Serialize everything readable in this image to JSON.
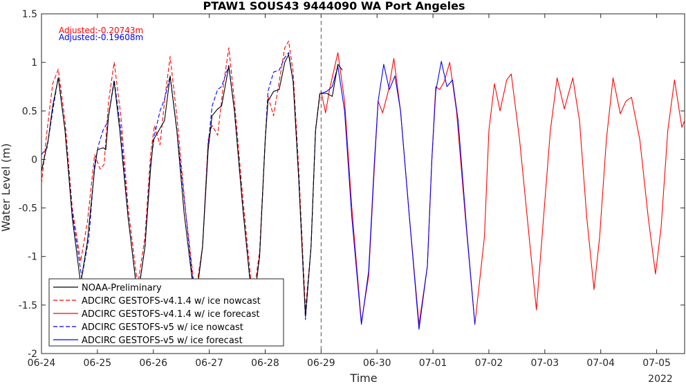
{
  "chart_data": {
    "type": "line",
    "title": "PTAW1 SOUS43 9444090 WA Port Angeles",
    "xlabel": "Time",
    "ylabel": "Water Level (m)",
    "year_label": "2022",
    "xlim": [
      0,
      11.5
    ],
    "ylim": [
      -2,
      1.5
    ],
    "x_ticks": [
      {
        "x": 0,
        "label": "06-24"
      },
      {
        "x": 1,
        "label": "06-25"
      },
      {
        "x": 2,
        "label": "06-26"
      },
      {
        "x": 3,
        "label": "06-27"
      },
      {
        "x": 4,
        "label": "06-28"
      },
      {
        "x": 5,
        "label": "06-29"
      },
      {
        "x": 6,
        "label": "06-30"
      },
      {
        "x": 7,
        "label": "07-01"
      },
      {
        "x": 8,
        "label": "07-02"
      },
      {
        "x": 9,
        "label": "07-03"
      },
      {
        "x": 10,
        "label": "07-04"
      },
      {
        "x": 11,
        "label": "07-05"
      }
    ],
    "y_ticks": [
      {
        "y": 1.5,
        "label": "1.5"
      },
      {
        "y": 1,
        "label": "1"
      },
      {
        "y": 0.5,
        "label": "0.5"
      },
      {
        "y": 0,
        "label": "0"
      },
      {
        "y": -0.5,
        "label": "-0.5"
      },
      {
        "y": -1,
        "label": "-1"
      },
      {
        "y": -1.5,
        "label": "-1.5"
      },
      {
        "y": -2,
        "label": "-2"
      }
    ],
    "nowcast_forecast_split_x": 5,
    "annotations": [
      {
        "text": "Adjusted:-0.20743m",
        "color": "#ff0000"
      },
      {
        "text": "Adjusted:-0.19608m",
        "color": "#0000ff"
      }
    ],
    "legend_position": "bottom-left",
    "series": [
      {
        "name": "NOAA-Preliminary",
        "color": "#000000",
        "dash": "solid",
        "points": [
          [
            0,
            -0.12
          ],
          [
            0.12,
            0.2
          ],
          [
            0.2,
            0.55
          ],
          [
            0.3,
            0.84
          ],
          [
            0.42,
            0.3
          ],
          [
            0.55,
            -0.6
          ],
          [
            0.7,
            -1.28
          ],
          [
            0.82,
            -0.85
          ],
          [
            0.95,
            -0.1
          ],
          [
            1.0,
            0.1
          ],
          [
            1.1,
            0.12
          ],
          [
            1.15,
            0.1
          ],
          [
            1.2,
            0.45
          ],
          [
            1.3,
            0.8
          ],
          [
            1.4,
            0.3
          ],
          [
            1.55,
            -0.6
          ],
          [
            1.72,
            -1.42
          ],
          [
            1.85,
            -0.9
          ],
          [
            1.95,
            -0.1
          ],
          [
            2.0,
            0.2
          ],
          [
            2.12,
            0.32
          ],
          [
            2.2,
            0.4
          ],
          [
            2.3,
            0.86
          ],
          [
            2.42,
            0.3
          ],
          [
            2.55,
            -0.55
          ],
          [
            2.75,
            -1.5
          ],
          [
            2.88,
            -0.9
          ],
          [
            2.98,
            0.1
          ],
          [
            3.05,
            0.45
          ],
          [
            3.15,
            0.52
          ],
          [
            3.22,
            0.55
          ],
          [
            3.35,
            0.96
          ],
          [
            3.45,
            0.5
          ],
          [
            3.6,
            -0.5
          ],
          [
            3.78,
            -1.55
          ],
          [
            3.9,
            -1.0
          ],
          [
            4.0,
            0.2
          ],
          [
            4.05,
            0.6
          ],
          [
            4.15,
            0.7
          ],
          [
            4.25,
            0.72
          ],
          [
            4.35,
            1.0
          ],
          [
            4.42,
            1.08
          ],
          [
            4.5,
            0.8
          ],
          [
            4.6,
            -0.2
          ],
          [
            4.72,
            -1.62
          ],
          [
            4.82,
            -0.9
          ],
          [
            4.9,
            0.3
          ],
          [
            4.98,
            0.68
          ],
          [
            5.1,
            0.68
          ],
          [
            5.2,
            0.65
          ],
          [
            5.3,
            0.98
          ],
          [
            5.38,
            0.92
          ]
        ]
      },
      {
        "name": "ADCIRC GESTOFS-v4.1.4 w/ ice nowcast",
        "color": "#ff0000",
        "dash": "dashed",
        "points": [
          [
            0,
            -0.25
          ],
          [
            0.1,
            0.3
          ],
          [
            0.2,
            0.78
          ],
          [
            0.3,
            0.93
          ],
          [
            0.42,
            0.4
          ],
          [
            0.55,
            -0.5
          ],
          [
            0.7,
            -1.05
          ],
          [
            0.82,
            -0.65
          ],
          [
            0.95,
            0.05
          ],
          [
            1.05,
            -0.1
          ],
          [
            1.12,
            -0.05
          ],
          [
            1.2,
            0.6
          ],
          [
            1.3,
            1.0
          ],
          [
            1.42,
            0.45
          ],
          [
            1.55,
            -0.5
          ],
          [
            1.72,
            -1.3
          ],
          [
            1.85,
            -0.8
          ],
          [
            1.95,
            0.05
          ],
          [
            2.02,
            0.35
          ],
          [
            2.12,
            0.15
          ],
          [
            2.2,
            0.6
          ],
          [
            2.3,
            1.06
          ],
          [
            2.42,
            0.45
          ],
          [
            2.58,
            -0.55
          ],
          [
            2.75,
            -1.4
          ],
          [
            2.88,
            -0.9
          ],
          [
            2.98,
            0.2
          ],
          [
            3.05,
            0.35
          ],
          [
            3.15,
            0.25
          ],
          [
            3.25,
            0.75
          ],
          [
            3.35,
            1.15
          ],
          [
            3.45,
            0.6
          ],
          [
            3.6,
            -0.4
          ],
          [
            3.78,
            -1.45
          ],
          [
            3.9,
            -0.95
          ],
          [
            4.0,
            0.2
          ],
          [
            4.05,
            0.65
          ],
          [
            4.15,
            0.45
          ],
          [
            4.25,
            0.8
          ],
          [
            4.35,
            1.15
          ],
          [
            4.42,
            1.22
          ],
          [
            4.5,
            0.9
          ],
          [
            4.6,
            -0.1
          ],
          [
            4.72,
            -1.55
          ],
          [
            4.82,
            -0.9
          ],
          [
            4.9,
            0.3
          ],
          [
            4.98,
            0.7
          ]
        ]
      },
      {
        "name": "ADCIRC GESTOFS-v4.1.4 w/ ice forecast",
        "color": "#ff0000",
        "dash": "solid",
        "points": [
          [
            5.0,
            0.7
          ],
          [
            5.08,
            0.48
          ],
          [
            5.15,
            0.72
          ],
          [
            5.3,
            1.1
          ],
          [
            5.42,
            0.6
          ],
          [
            5.55,
            -0.5
          ],
          [
            5.72,
            -1.68
          ],
          [
            5.85,
            -1.2
          ],
          [
            5.95,
            -0.1
          ],
          [
            6.02,
            0.6
          ],
          [
            6.1,
            0.48
          ],
          [
            6.2,
            0.7
          ],
          [
            6.3,
            1.04
          ],
          [
            6.42,
            0.5
          ],
          [
            6.58,
            -0.6
          ],
          [
            6.75,
            -1.7
          ],
          [
            6.9,
            -1.1
          ],
          [
            6.98,
            0.0
          ],
          [
            7.05,
            0.75
          ],
          [
            7.12,
            0.72
          ],
          [
            7.2,
            0.8
          ],
          [
            7.3,
            1.0
          ],
          [
            7.42,
            0.5
          ],
          [
            7.58,
            -0.6
          ],
          [
            7.75,
            -1.7
          ],
          [
            7.92,
            -0.8
          ],
          [
            8.0,
            0.3
          ],
          [
            8.1,
            0.78
          ],
          [
            8.2,
            0.5
          ],
          [
            8.32,
            0.82
          ],
          [
            8.4,
            0.88
          ],
          [
            8.55,
            0.2
          ],
          [
            8.72,
            -0.8
          ],
          [
            8.85,
            -1.55
          ],
          [
            8.95,
            -0.8
          ],
          [
            9.1,
            0.3
          ],
          [
            9.22,
            0.84
          ],
          [
            9.35,
            0.52
          ],
          [
            9.5,
            0.84
          ],
          [
            9.62,
            0.4
          ],
          [
            9.75,
            -0.6
          ],
          [
            9.88,
            -1.34
          ],
          [
            9.98,
            -0.8
          ],
          [
            10.1,
            0.2
          ],
          [
            10.22,
            0.84
          ],
          [
            10.35,
            0.47
          ],
          [
            10.45,
            0.6
          ],
          [
            10.55,
            0.64
          ],
          [
            10.7,
            0.2
          ],
          [
            10.85,
            -0.6
          ],
          [
            10.98,
            -1.18
          ],
          [
            11.08,
            -0.7
          ],
          [
            11.2,
            0.3
          ],
          [
            11.32,
            0.82
          ],
          [
            11.45,
            0.33
          ],
          [
            11.5,
            0.4
          ]
        ]
      },
      {
        "name": "ADCIRC GESTOFS-v5 w/ ice nowcast",
        "color": "#0000ff",
        "dash": "dashed",
        "points": [
          [
            0,
            0.05
          ],
          [
            0.1,
            0.12
          ],
          [
            0.2,
            0.5
          ],
          [
            0.3,
            0.85
          ],
          [
            0.42,
            0.3
          ],
          [
            0.55,
            -0.55
          ],
          [
            0.72,
            -1.22
          ],
          [
            0.85,
            -0.8
          ],
          [
            0.95,
            -0.05
          ],
          [
            1.02,
            0.15
          ],
          [
            1.1,
            0.3
          ],
          [
            1.18,
            0.38
          ],
          [
            1.3,
            0.82
          ],
          [
            1.42,
            0.3
          ],
          [
            1.55,
            -0.6
          ],
          [
            1.72,
            -1.42
          ],
          [
            1.85,
            -0.9
          ],
          [
            1.95,
            -0.05
          ],
          [
            2.02,
            0.25
          ],
          [
            2.12,
            0.5
          ],
          [
            2.2,
            0.62
          ],
          [
            2.3,
            0.86
          ],
          [
            2.42,
            0.3
          ],
          [
            2.58,
            -0.55
          ],
          [
            2.75,
            -1.5
          ],
          [
            2.88,
            -0.9
          ],
          [
            2.98,
            0.15
          ],
          [
            3.05,
            0.55
          ],
          [
            3.15,
            0.72
          ],
          [
            3.22,
            0.75
          ],
          [
            3.35,
            0.97
          ],
          [
            3.45,
            0.5
          ],
          [
            3.6,
            -0.5
          ],
          [
            3.78,
            -1.55
          ],
          [
            3.9,
            -1.0
          ],
          [
            4.0,
            0.2
          ],
          [
            4.05,
            0.7
          ],
          [
            4.15,
            0.9
          ],
          [
            4.25,
            0.92
          ],
          [
            4.35,
            1.05
          ],
          [
            4.42,
            1.1
          ],
          [
            4.5,
            0.8
          ],
          [
            4.6,
            -0.2
          ],
          [
            4.72,
            -1.65
          ],
          [
            4.82,
            -0.9
          ],
          [
            4.9,
            0.3
          ],
          [
            4.98,
            0.68
          ]
        ]
      },
      {
        "name": "ADCIRC GESTOFS-v5 w/ ice forecast",
        "color": "#0000ff",
        "dash": "solid",
        "points": [
          [
            5.0,
            0.68
          ],
          [
            5.1,
            0.7
          ],
          [
            5.2,
            0.75
          ],
          [
            5.3,
            0.96
          ],
          [
            5.42,
            0.5
          ],
          [
            5.55,
            -0.6
          ],
          [
            5.72,
            -1.7
          ],
          [
            5.85,
            -1.15
          ],
          [
            5.95,
            -0.05
          ],
          [
            6.02,
            0.6
          ],
          [
            6.12,
            0.98
          ],
          [
            6.22,
            0.72
          ],
          [
            6.32,
            0.86
          ],
          [
            6.42,
            0.5
          ],
          [
            6.58,
            -0.6
          ],
          [
            6.75,
            -1.75
          ],
          [
            6.9,
            -1.1
          ],
          [
            6.98,
            0.0
          ],
          [
            7.05,
            0.7
          ],
          [
            7.15,
            1.01
          ],
          [
            7.25,
            0.75
          ],
          [
            7.35,
            0.82
          ],
          [
            7.45,
            0.4
          ],
          [
            7.6,
            -0.7
          ],
          [
            7.75,
            -1.7
          ]
        ]
      }
    ]
  }
}
